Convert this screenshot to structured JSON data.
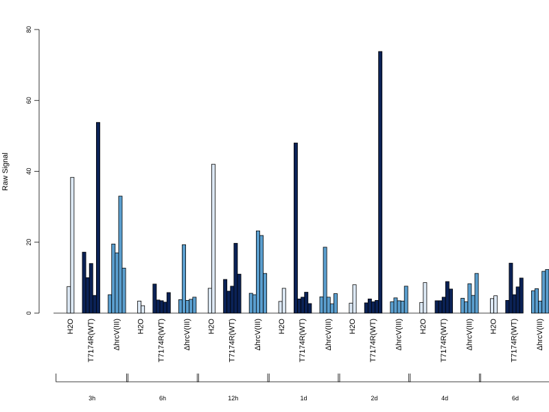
{
  "chart_data": {
    "type": "bar",
    "title": "",
    "xlabel": "",
    "ylabel": "Raw Signal",
    "ylim": [
      0,
      80
    ],
    "yticks": [
      0,
      20,
      40,
      60,
      80
    ],
    "grid": false,
    "legend": "none",
    "group_labels": [
      "H2O",
      "T7174R(WT)",
      "ΔhrcV(III)"
    ],
    "group_colors": [
      "#dde9f5",
      "#0b2256",
      "#5b9fcf"
    ],
    "sections": [
      {
        "label": "3h",
        "groups": [
          {
            "name": "H2O",
            "values": [
              7.5,
              38.3
            ]
          },
          {
            "name": "T7174R(WT)",
            "values": [
              17.2,
              10.0,
              14.0,
              5.0,
              53.8
            ]
          },
          {
            "name": "ΔhrcV(III)",
            "values": [
              5.2,
              19.5,
              17.0,
              33.0,
              12.7
            ]
          }
        ]
      },
      {
        "label": "6h",
        "groups": [
          {
            "name": "H2O",
            "values": [
              3.4,
              2.1
            ]
          },
          {
            "name": "T7174R(WT)",
            "values": [
              8.2,
              3.7,
              3.5,
              3.1,
              5.8
            ]
          },
          {
            "name": "ΔhrcV(III)",
            "values": [
              3.8,
              19.3,
              3.6,
              3.9,
              4.5
            ]
          }
        ]
      },
      {
        "label": "12h",
        "groups": [
          {
            "name": "H2O",
            "values": [
              7.0,
              42.0
            ]
          },
          {
            "name": "T7174R(WT)",
            "values": [
              9.5,
              6.2,
              7.6,
              19.7,
              11.0
            ]
          },
          {
            "name": "ΔhrcV(III)",
            "values": [
              5.6,
              5.2,
              23.2,
              21.9,
              11.2
            ]
          }
        ]
      },
      {
        "label": "1d",
        "groups": [
          {
            "name": "H2O",
            "values": [
              3.3,
              7.0
            ]
          },
          {
            "name": "T7174R(WT)",
            "values": [
              48.0,
              4.0,
              4.5,
              5.9,
              2.7
            ]
          },
          {
            "name": "ΔhrcV(III)",
            "values": [
              4.6,
              18.6,
              4.5,
              2.6,
              5.5
            ]
          }
        ]
      },
      {
        "label": "2d",
        "groups": [
          {
            "name": "H2O",
            "values": [
              2.8,
              8.0
            ]
          },
          {
            "name": "T7174R(WT)",
            "values": [
              2.9,
              4.0,
              3.2,
              3.6,
              73.8
            ]
          },
          {
            "name": "ΔhrcV(III)",
            "values": [
              3.2,
              4.3,
              3.5,
              3.4,
              7.6
            ]
          }
        ]
      },
      {
        "label": "4d",
        "groups": [
          {
            "name": "H2O",
            "values": [
              3.0,
              8.6
            ]
          },
          {
            "name": "T7174R(WT)",
            "values": [
              3.5,
              3.5,
              4.5,
              8.9,
              6.8
            ]
          },
          {
            "name": "ΔhrcV(III)",
            "values": [
              4.2,
              3.2,
              8.3,
              5.0,
              11.2
            ]
          }
        ]
      },
      {
        "label": "6d",
        "groups": [
          {
            "name": "H2O",
            "values": [
              4.1,
              4.9
            ]
          },
          {
            "name": "T7174R(WT)",
            "values": [
              3.6,
              14.1,
              5.2,
              7.4,
              9.9
            ]
          },
          {
            "name": "ΔhrcV(III)",
            "values": [
              6.3,
              6.9,
              3.4,
              11.8,
              12.3
            ]
          }
        ]
      }
    ]
  }
}
